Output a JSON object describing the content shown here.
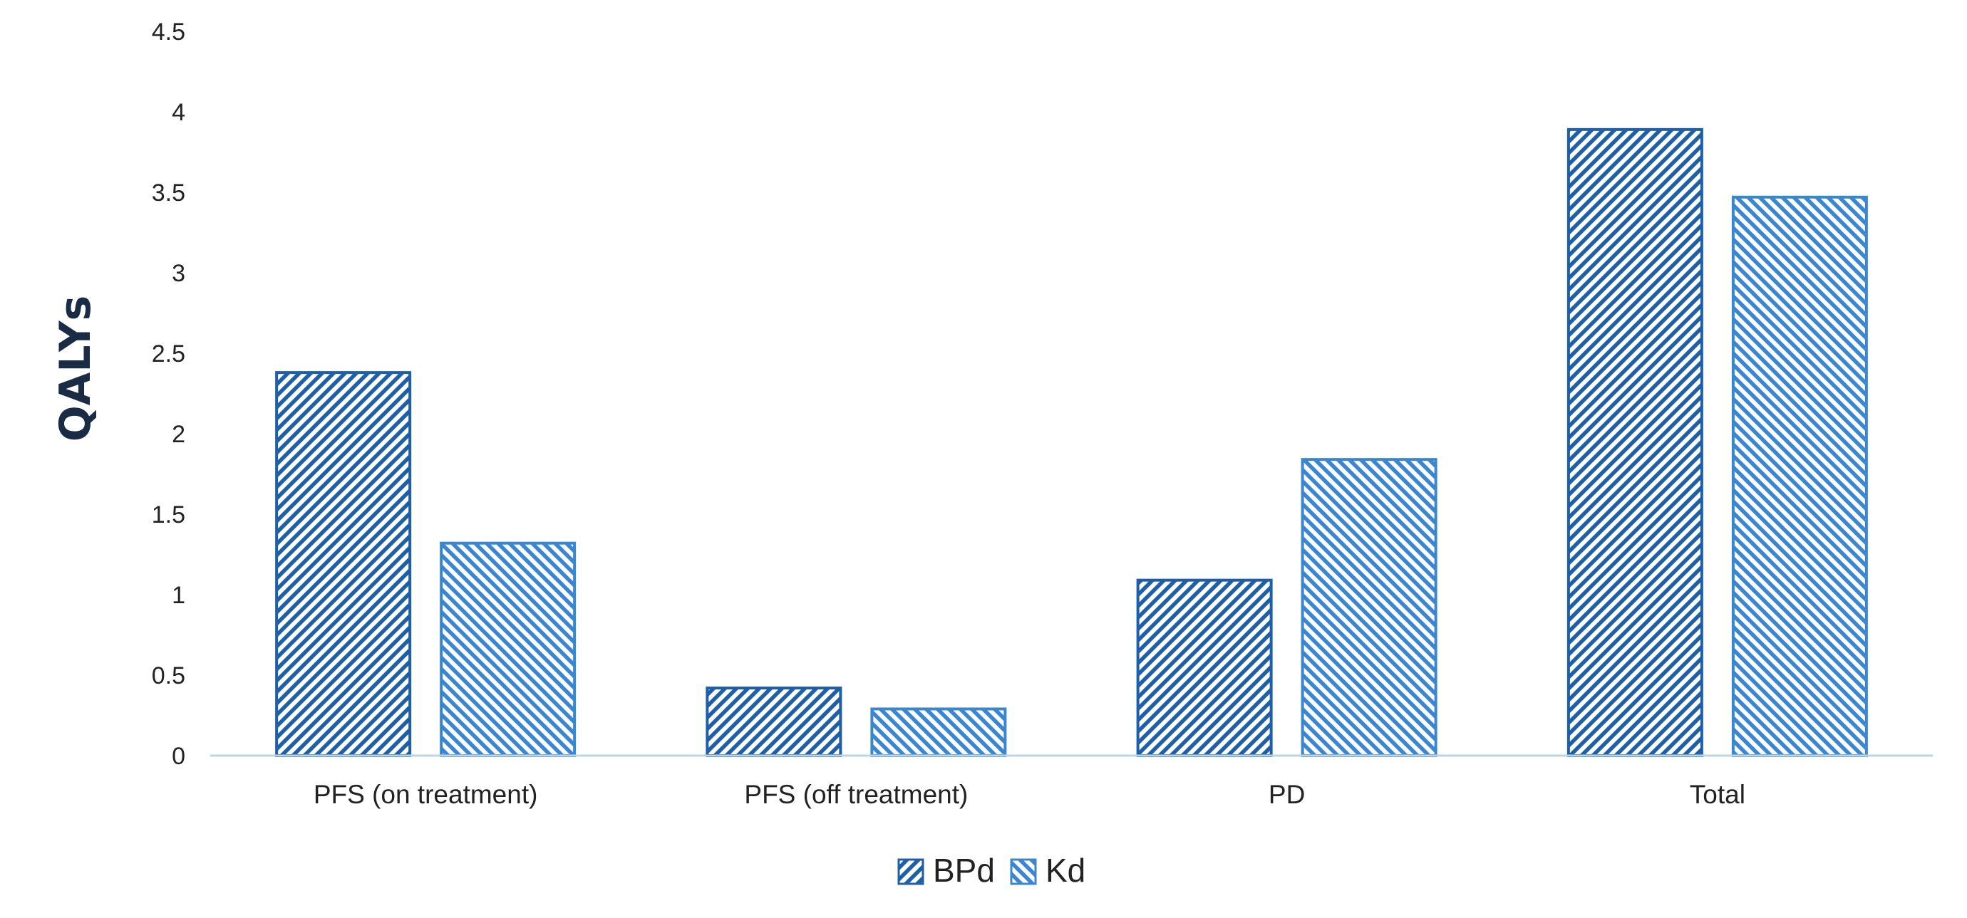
{
  "chart_data": {
    "type": "bar",
    "categories": [
      "PFS (on treatment)",
      "PFS (off treatment)",
      "PD",
      "Total"
    ],
    "series": [
      {
        "name": "BPd",
        "values": [
          2.38,
          0.42,
          1.09,
          3.89
        ],
        "color": "#1f5fa8",
        "pattern": "diagonal-up"
      },
      {
        "name": "Kd",
        "values": [
          1.32,
          0.29,
          1.84,
          3.47
        ],
        "color": "#3a87d0",
        "pattern": "diagonal-down"
      }
    ],
    "title": "",
    "xlabel": "",
    "ylabel": "QALYs",
    "ylim": [
      0,
      4.5
    ],
    "yticks": [
      "0",
      "0.5",
      "1",
      "1.5",
      "2",
      "2.5",
      "3",
      "3.5",
      "4",
      "4.5"
    ],
    "grid": false,
    "legend": "bottom-center",
    "axis_color": "#bcd4ea"
  }
}
